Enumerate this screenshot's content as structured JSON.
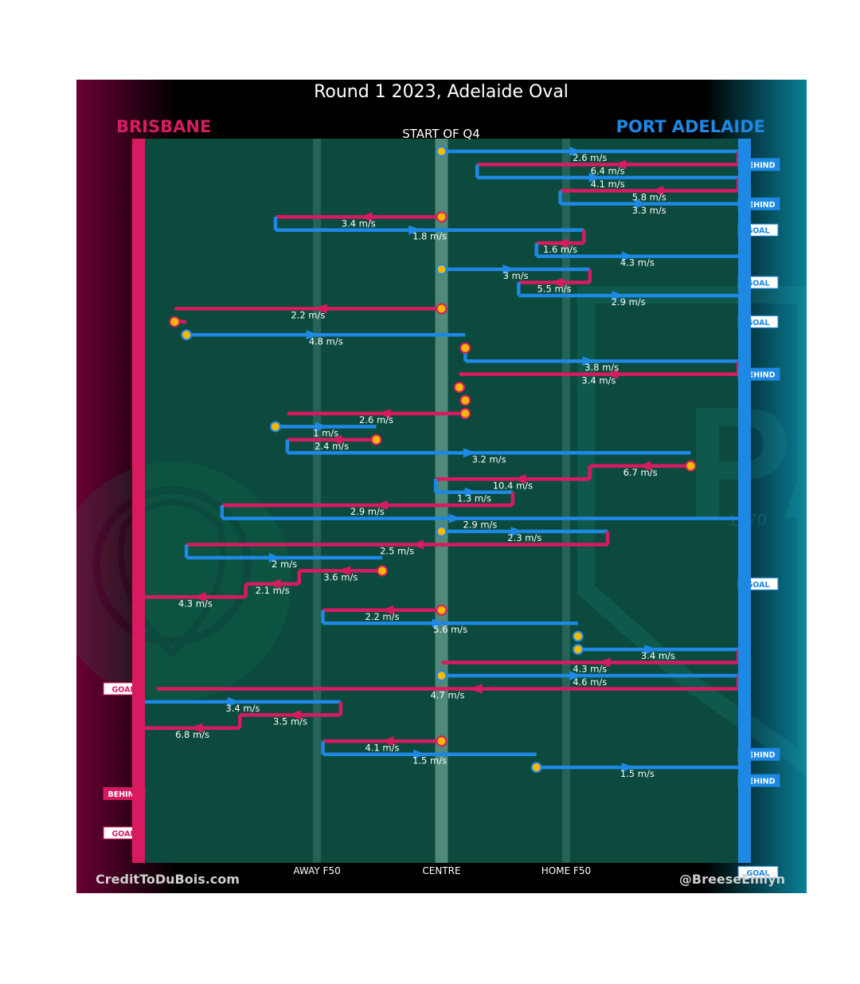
{
  "title": "Round 1 2023, Adelaide Oval",
  "start_label": "START OF Q4",
  "footer": {
    "left": "CreditToDuBois.com",
    "right": "@BreeseEmlyn"
  },
  "colors": {
    "brisbane": "#d81b60",
    "port_adelaide": "#1e88e5",
    "field": "#0b4a3c",
    "stoppage": "#f5b800",
    "brisbane_bg": "#6a0035",
    "port_bg": "#0a7f96"
  },
  "chart_data": {
    "type": "line",
    "x_axis": {
      "range": [
        0,
        1
      ],
      "ticks": [
        {
          "label": "AWAY F50",
          "x": 0.29
        },
        {
          "label": "CENTRE",
          "x": 0.5
        },
        {
          "label": "HOME F50",
          "x": 0.71
        }
      ]
    },
    "teams": [
      {
        "name": "BRISBANE",
        "side": "left"
      },
      {
        "name": "PORT ADELAIDE",
        "side": "right"
      }
    ],
    "end_tags": [
      {
        "team": "PORT ADELAIDE",
        "label": "BEHIND",
        "chain": 1
      },
      {
        "team": "PORT ADELAIDE",
        "label": "BEHIND",
        "chain": 4
      },
      {
        "team": "PORT ADELAIDE",
        "label": "GOAL",
        "chain": 6
      },
      {
        "team": "PORT ADELAIDE",
        "label": "GOAL",
        "chain": 10
      },
      {
        "team": "PORT ADELAIDE",
        "label": "GOAL",
        "chain": 13
      },
      {
        "team": "PORT ADELAIDE",
        "label": "BEHIND",
        "chain": 17
      },
      {
        "team": "PORT ADELAIDE",
        "label": "GOAL",
        "chain": 33
      },
      {
        "team": "BRISBANE",
        "label": "GOAL",
        "chain": 41
      },
      {
        "team": "PORT ADELAIDE",
        "label": "BEHIND",
        "chain": 46
      },
      {
        "team": "PORT ADELAIDE",
        "label": "BEHIND",
        "chain": 48
      },
      {
        "team": "BRISBANE",
        "label": "BEHIND",
        "chain": 49
      },
      {
        "team": "BRISBANE",
        "label": "GOAL",
        "chain": 52
      },
      {
        "team": "PORT ADELAIDE",
        "label": "GOAL",
        "chain": 55
      }
    ],
    "chains": [
      {
        "team": "PORT ADELAIDE",
        "from": 0.5,
        "to": 1.0,
        "speed": "2.6 m/s",
        "start": "stoppage"
      },
      {
        "team": "BRISBANE",
        "from": 1.0,
        "to": 0.56,
        "speed": "6.4 m/s"
      },
      {
        "team": "PORT ADELAIDE",
        "from": 0.56,
        "to": 1.0,
        "speed": "4.1 m/s"
      },
      {
        "team": "BRISBANE",
        "from": 1.0,
        "to": 0.7,
        "speed": "5.8 m/s"
      },
      {
        "team": "PORT ADELAIDE",
        "from": 0.7,
        "to": 1.0,
        "speed": "3.3 m/s"
      },
      {
        "team": "BRISBANE",
        "from": 0.5,
        "to": 0.22,
        "speed": "3.4 m/s",
        "start": "stoppage"
      },
      {
        "team": "PORT ADELAIDE",
        "from": 0.22,
        "to": 0.74,
        "speed": "1.8 m/s"
      },
      {
        "team": "BRISBANE",
        "from": 0.74,
        "to": 0.66,
        "speed": "1.6 m/s"
      },
      {
        "team": "PORT ADELAIDE",
        "from": 0.66,
        "to": 1.0,
        "speed": "4.3 m/s"
      },
      {
        "team": "PORT ADELAIDE",
        "from": 0.5,
        "to": 0.75,
        "speed": "3 m/s",
        "start": "stoppage"
      },
      {
        "team": "BRISBANE",
        "from": 0.75,
        "to": 0.63,
        "speed": "5.5 m/s"
      },
      {
        "team": "PORT ADELAIDE",
        "from": 0.63,
        "to": 1.0,
        "speed": "2.9 m/s"
      },
      {
        "team": "BRISBANE",
        "from": 0.5,
        "to": 0.05,
        "speed": "2.2 m/s",
        "start": "stoppage"
      },
      {
        "team": "BRISBANE",
        "from": 0.05,
        "to": 0.07,
        "speed": "",
        "start": "stoppage"
      },
      {
        "team": "PORT ADELAIDE",
        "from": 0.07,
        "to": 0.54,
        "speed": "4.8 m/s",
        "start": "stoppage"
      },
      {
        "team": "BRISBANE",
        "from": 0.54,
        "to": 0.54,
        "speed": "",
        "start": "stoppage"
      },
      {
        "team": "PORT ADELAIDE",
        "from": 0.54,
        "to": 1.0,
        "speed": "3.8 m/s"
      },
      {
        "team": "BRISBANE",
        "from": 1.0,
        "to": 0.53,
        "speed": "3.4 m/s"
      },
      {
        "team": "BRISBANE",
        "from": 0.53,
        "to": 0.54,
        "speed": "",
        "start": "stoppage"
      },
      {
        "team": "BRISBANE",
        "from": 0.54,
        "to": 0.54,
        "speed": "",
        "start": "stoppage"
      },
      {
        "team": "BRISBANE",
        "from": 0.54,
        "to": 0.24,
        "speed": "2.6 m/s",
        "start": "stoppage"
      },
      {
        "team": "PORT ADELAIDE",
        "from": 0.22,
        "to": 0.39,
        "speed": "1 m/s",
        "start": "stoppage"
      },
      {
        "team": "BRISBANE",
        "from": 0.39,
        "to": 0.24,
        "speed": "2.4 m/s",
        "start": "stoppage"
      },
      {
        "team": "PORT ADELAIDE",
        "from": 0.24,
        "to": 0.92,
        "speed": "3.2 m/s"
      },
      {
        "team": "BRISBANE",
        "from": 0.92,
        "to": 0.75,
        "speed": "6.7 m/s",
        "start": "stoppage"
      },
      {
        "team": "BRISBANE",
        "from": 0.75,
        "to": 0.49,
        "speed": "10.4 m/s"
      },
      {
        "team": "PORT ADELAIDE",
        "from": 0.49,
        "to": 0.62,
        "speed": "1.3 m/s"
      },
      {
        "team": "BRISBANE",
        "from": 0.62,
        "to": 0.13,
        "speed": "2.9 m/s"
      },
      {
        "team": "PORT ADELAIDE",
        "from": 0.13,
        "to": 1.0,
        "speed": "2.9 m/s"
      },
      {
        "team": "PORT ADELAIDE",
        "from": 0.5,
        "to": 0.78,
        "speed": "2.3 m/s",
        "start": "stoppage"
      },
      {
        "team": "BRISBANE",
        "from": 0.78,
        "to": 0.07,
        "speed": "2.5 m/s"
      },
      {
        "team": "PORT ADELAIDE",
        "from": 0.07,
        "to": 0.4,
        "speed": "2 m/s"
      },
      {
        "team": "BRISBANE",
        "from": 0.4,
        "to": 0.26,
        "speed": "3.6 m/s",
        "start": "stoppage"
      },
      {
        "team": "BRISBANE",
        "from": 0.26,
        "to": 0.17,
        "speed": "2.1 m/s"
      },
      {
        "team": "BRISBANE",
        "from": 0.17,
        "to": 0.0,
        "speed": "4.3 m/s"
      },
      {
        "team": "BRISBANE",
        "from": 0.5,
        "to": 0.3,
        "speed": "2.2 m/s",
        "start": "stoppage"
      },
      {
        "team": "PORT ADELAIDE",
        "from": 0.3,
        "to": 0.73,
        "speed": "5.6 m/s"
      },
      {
        "team": "PORT ADELAIDE",
        "from": 0.73,
        "to": 0.73,
        "speed": "",
        "start": "stoppage"
      },
      {
        "team": "PORT ADELAIDE",
        "from": 0.73,
        "to": 1.0,
        "speed": "3.4 m/s",
        "start": "stoppage"
      },
      {
        "team": "BRISBANE",
        "from": 1.0,
        "to": 0.5,
        "speed": "4.3 m/s"
      },
      {
        "team": "PORT ADELAIDE",
        "from": 0.5,
        "to": 1.0,
        "speed": "4.6 m/s",
        "start": "stoppage"
      },
      {
        "team": "BRISBANE",
        "from": 1.0,
        "to": 0.02,
        "speed": "4.7 m/s"
      },
      {
        "team": "PORT ADELAIDE",
        "from": 0.0,
        "to": 0.33,
        "speed": "3.4 m/s"
      },
      {
        "team": "BRISBANE",
        "from": 0.33,
        "to": 0.16,
        "speed": "3.5 m/s"
      },
      {
        "team": "BRISBANE",
        "from": 0.16,
        "to": 0.0,
        "speed": "6.8 m/s"
      },
      {
        "team": "BRISBANE",
        "from": 0.5,
        "to": 0.3,
        "speed": "4.1 m/s",
        "start": "stoppage"
      },
      {
        "team": "PORT ADELAIDE",
        "from": 0.3,
        "to": 0.66,
        "speed": "1.5 m/s"
      },
      {
        "team": "PORT ADELAIDE",
        "from": 0.66,
        "to": 1.0,
        "speed": "1.5 m/s",
        "start": "stoppage"
      }
    ]
  }
}
